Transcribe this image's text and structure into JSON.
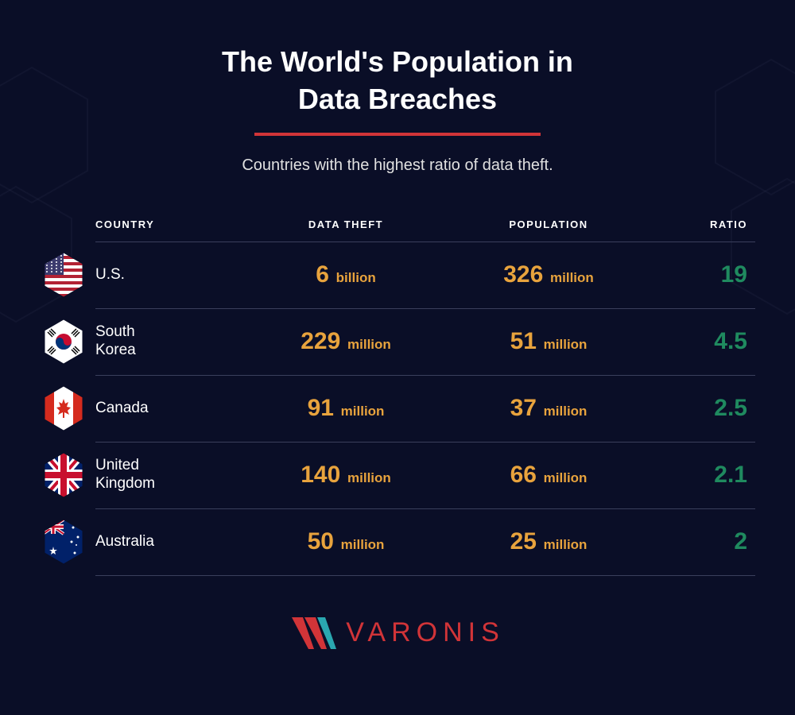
{
  "title_line1": "The World's Population in",
  "title_line2": "Data Breaches",
  "subtitle": "Countries with the highest ratio of data theft.",
  "colors": {
    "background": "#0a0e27",
    "accent_red": "#d13438",
    "value_gold": "#e8a33d",
    "ratio_green": "#1f8a5f",
    "divider": "#3a3f5c",
    "text": "#ffffff",
    "logo_teal": "#2aa7b0"
  },
  "typography": {
    "title_fontsize": 36,
    "subtitle_fontsize": 20,
    "header_fontsize": 13,
    "country_fontsize": 19,
    "value_fontsize": 30,
    "unit_fontsize": 17,
    "ratio_fontsize": 30,
    "logo_fontsize": 34
  },
  "table": {
    "columns": [
      "COUNTRY",
      "DATA THEFT",
      "POPULATION",
      "RATIO"
    ],
    "rows": [
      {
        "country": "U.S.",
        "theft_value": "6",
        "theft_unit": "billion",
        "pop_value": "326",
        "pop_unit": "million",
        "ratio": "19",
        "flag": "us"
      },
      {
        "country": "South Korea",
        "theft_value": "229",
        "theft_unit": "million",
        "pop_value": "51",
        "pop_unit": "million",
        "ratio": "4.5",
        "flag": "kr"
      },
      {
        "country": "Canada",
        "theft_value": "91",
        "theft_unit": "million",
        "pop_value": "37",
        "pop_unit": "million",
        "ratio": "2.5",
        "flag": "ca"
      },
      {
        "country": "United Kingdom",
        "theft_value": "140",
        "theft_unit": "million",
        "pop_value": "66",
        "pop_unit": "million",
        "ratio": "2.1",
        "flag": "uk"
      },
      {
        "country": "Australia",
        "theft_value": "50",
        "theft_unit": "million",
        "pop_value": "25",
        "pop_unit": "million",
        "ratio": "2",
        "flag": "au"
      }
    ]
  },
  "logo_text": "VARONIS"
}
